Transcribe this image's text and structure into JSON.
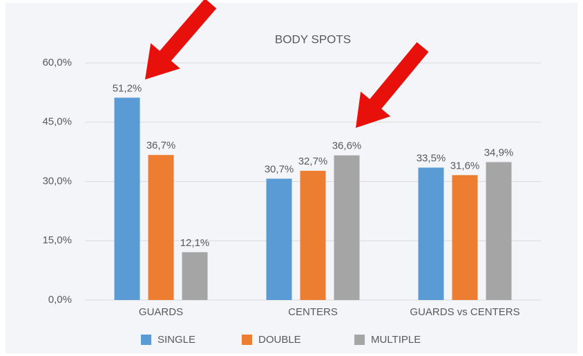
{
  "chart_data": {
    "type": "bar",
    "title": "BODY SPOTS",
    "categories": [
      "GUARDS",
      "CENTERS",
      "GUARDS vs CENTERS"
    ],
    "series": [
      {
        "name": "SINGLE",
        "color": "#5b9bd5",
        "values": [
          51.2,
          30.7,
          33.5
        ],
        "value_labels": [
          "51,2%",
          "30,7%",
          "33,5%"
        ]
      },
      {
        "name": "DOUBLE",
        "color": "#ed7d31",
        "values": [
          36.7,
          32.7,
          31.6
        ],
        "value_labels": [
          "36,7%",
          "32,7%",
          "31,6%"
        ]
      },
      {
        "name": "MULTIPLE",
        "color": "#a5a5a5",
        "values": [
          12.1,
          36.6,
          34.9
        ],
        "value_labels": [
          "12,1%",
          "36,6%",
          "34,9%"
        ]
      }
    ],
    "ylim": [
      0,
      60
    ],
    "yticks": [
      {
        "value": 0,
        "label": "0,0%"
      },
      {
        "value": 15,
        "label": "15,0%"
      },
      {
        "value": 30,
        "label": "30,0%"
      },
      {
        "value": 45,
        "label": "45,0%"
      },
      {
        "value": 60,
        "label": "60,0%"
      }
    ],
    "grid": true,
    "legend": "bottom"
  }
}
